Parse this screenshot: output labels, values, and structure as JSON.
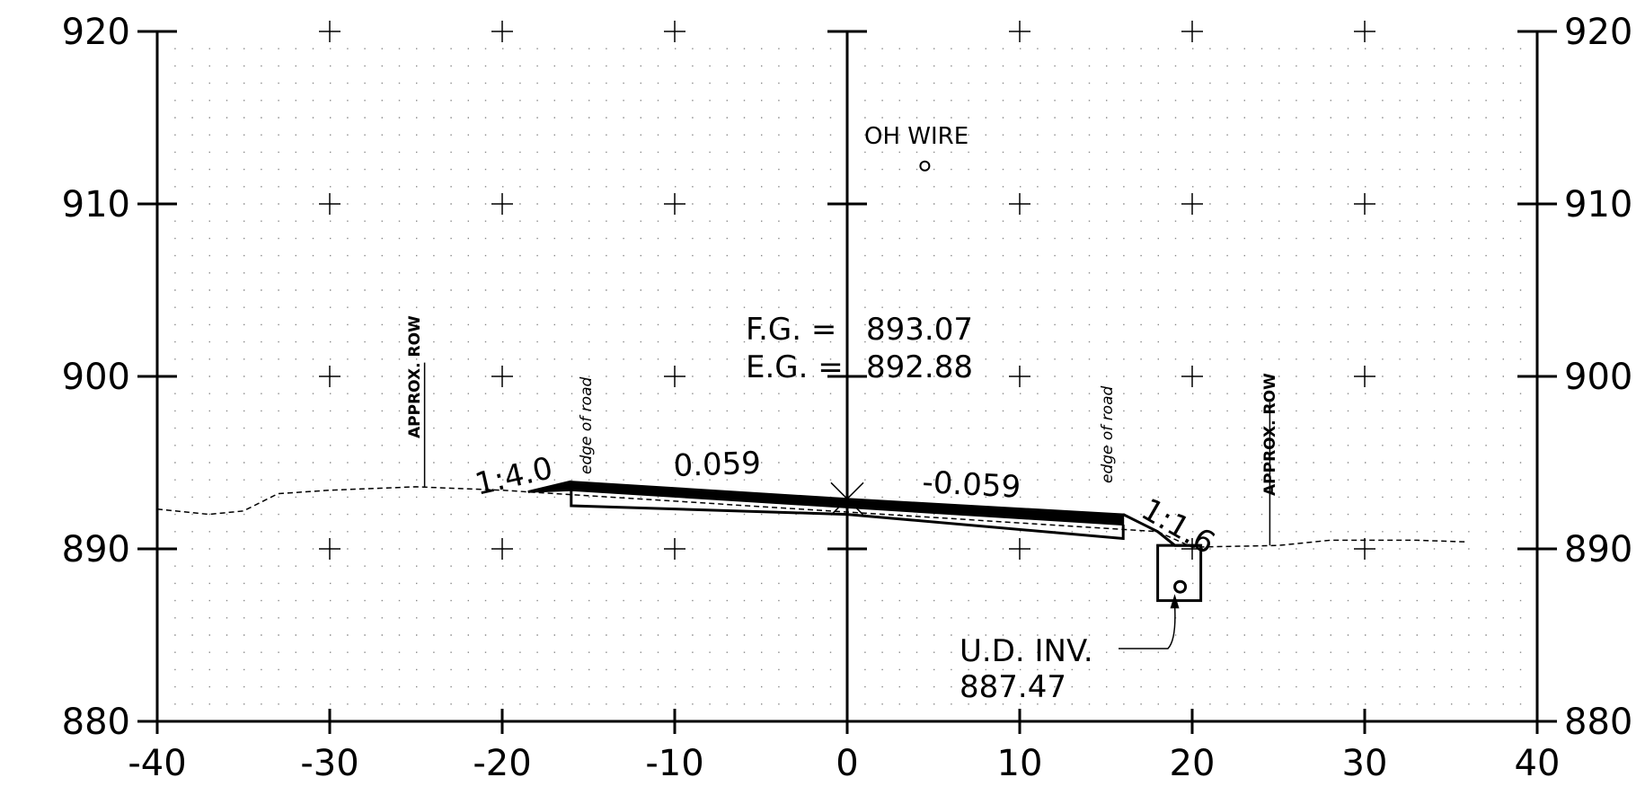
{
  "chart_data": {
    "type": "cross-section",
    "x_axis": {
      "ticks": [
        -40,
        -30,
        -20,
        -10,
        0,
        10,
        20,
        30,
        40
      ],
      "range": [
        -40,
        40
      ]
    },
    "y_axis": {
      "ticks": [
        880,
        890,
        900,
        910,
        920
      ],
      "range": [
        880,
        920
      ]
    },
    "existing_ground": [
      [
        -40,
        892.3
      ],
      [
        -37,
        892.0
      ],
      [
        -35,
        892.2
      ],
      [
        -33,
        893.2
      ],
      [
        -30,
        893.4
      ],
      [
        -25,
        893.6
      ],
      [
        -20,
        893.4
      ],
      [
        -18.5,
        893.3
      ],
      [
        18,
        891.0
      ],
      [
        20,
        890.1
      ],
      [
        25,
        890.2
      ],
      [
        28,
        890.5
      ],
      [
        33,
        890.5
      ],
      [
        36,
        890.4
      ]
    ],
    "finished_grade": [
      [
        -18.5,
        893.3
      ],
      [
        -16,
        893.9
      ],
      [
        0,
        892.9
      ],
      [
        16,
        892.0
      ],
      [
        18,
        890.8
      ]
    ],
    "subgrade": [
      [
        -16,
        893.4
      ],
      [
        0,
        892.4
      ],
      [
        16,
        891.4
      ]
    ],
    "base": [
      [
        -16,
        892.5
      ],
      [
        0,
        892.0
      ],
      [
        16,
        890.6
      ]
    ],
    "underdrain_trench": {
      "x1": 18,
      "x2": 20.5,
      "top": 891.0,
      "bottom": 887.0
    },
    "underdrain_pipe": {
      "x": 19.3,
      "y": 887.8
    },
    "oh_wire_point": {
      "x": 4.5,
      "y": 912.2
    },
    "row_markers": [
      {
        "x": -24.5,
        "ground": 893.6,
        "top": 900.8
      },
      {
        "x": 24.5,
        "ground": 890.2,
        "top": 898.5
      }
    ],
    "edge_of_road": [
      {
        "x": -15.8,
        "label_y": 893.5
      },
      {
        "x": 15.2,
        "label_y": 892.5
      }
    ],
    "annotations": {
      "approx_row_left": "APPROX. ROW",
      "approx_row_right": "APPROX. ROW",
      "edge_of_road_left": "edge of road",
      "edge_of_road_right": "edge of road",
      "slope_left": "1:4.0",
      "slope_right": "1:1.6",
      "cross_slope_left": "0.059",
      "cross_slope_right": "-0.059",
      "fg_label": "F.G. =",
      "fg_value": "893.07",
      "eg_label": "E.G. =",
      "eg_value": "892.88",
      "oh_wire": "OH WIRE",
      "ud_inv_label": "U.D. INV.",
      "ud_inv_value": "887.47"
    }
  }
}
